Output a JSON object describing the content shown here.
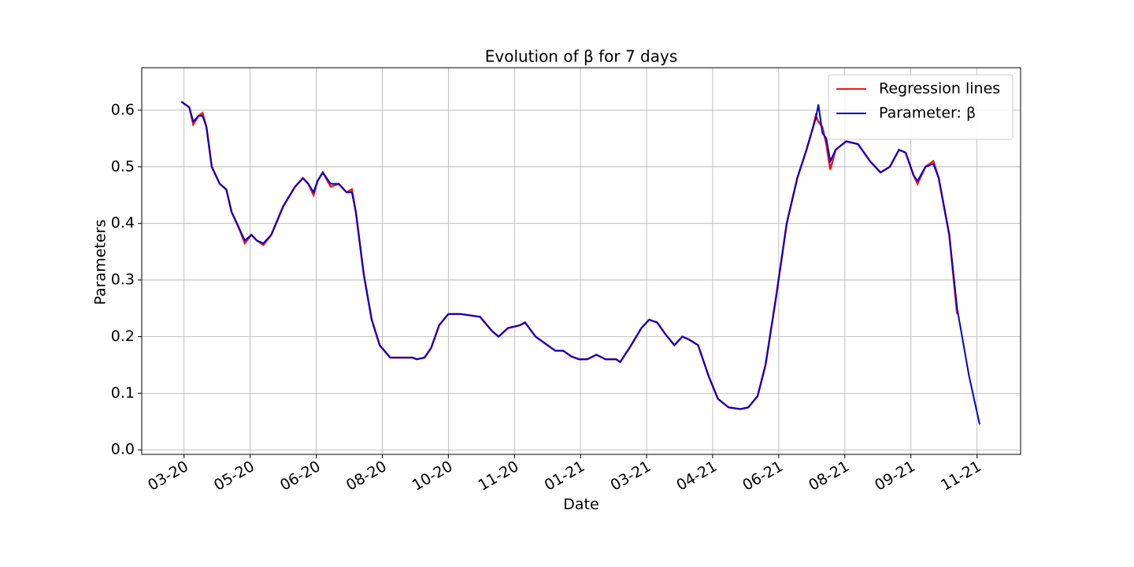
{
  "chart_data": {
    "type": "line",
    "title": "Evolution of β for 7 days",
    "xlabel": "Date",
    "ylabel": "Parameters",
    "x": [
      -2,
      4,
      7,
      11,
      14,
      17,
      21,
      27,
      32,
      36,
      41,
      46,
      51,
      55,
      60,
      66,
      75,
      84,
      90,
      94,
      98,
      101,
      105,
      111,
      117,
      123,
      127,
      130,
      136,
      142,
      148,
      156,
      164,
      173,
      176,
      182,
      187,
      193,
      200,
      209,
      224,
      233,
      238,
      245,
      254,
      258,
      266,
      275,
      281,
      287,
      293,
      299,
      305,
      312,
      319,
      327,
      330,
      337,
      346,
      352,
      358,
      364,
      371,
      377,
      382,
      389,
      397,
      404,
      412,
      421,
      427,
      434,
      440,
      448,
      456,
      464,
      471,
      476,
      478,
      480,
      483,
      486,
      489,
      493,
      501,
      510,
      519,
      527,
      534,
      541,
      546,
      552,
      555,
      561,
      567,
      571,
      579,
      585,
      594,
      602
    ],
    "series": [
      {
        "name": "Regression lines",
        "color": "#e41a1c",
        "values": [
          0.615,
          0.605,
          0.575,
          0.59,
          0.595,
          0.57,
          0.5,
          0.47,
          0.46,
          0.42,
          0.395,
          0.365,
          0.38,
          0.37,
          0.362,
          0.38,
          0.43,
          0.465,
          0.48,
          0.47,
          0.45,
          0.475,
          0.49,
          0.465,
          0.47,
          0.455,
          0.46,
          0.42,
          0.31,
          0.23,
          0.185,
          0.163,
          0.163,
          0.163,
          0.16,
          0.163,
          0.18,
          0.22,
          0.24,
          0.24,
          0.235,
          0.21,
          0.2,
          0.215,
          0.22,
          0.225,
          0.2,
          0.185,
          0.175,
          0.175,
          0.165,
          0.16,
          0.16,
          0.168,
          0.16,
          0.16,
          0.155,
          0.18,
          0.215,
          0.23,
          0.225,
          0.205,
          0.185,
          0.2,
          0.195,
          0.185,
          0.13,
          0.09,
          0.075,
          0.072,
          0.075,
          0.095,
          0.15,
          0.27,
          0.4,
          0.48,
          0.53,
          0.57,
          0.59,
          0.58,
          0.57,
          0.54,
          0.495,
          0.53,
          0.545,
          0.54,
          0.51,
          0.49,
          0.5,
          0.53,
          0.525,
          0.485,
          0.47,
          0.5,
          0.51,
          0.48,
          0.38,
          0.24,
          null,
          null
        ]
      },
      {
        "name": "Parameter: β",
        "color": "#0000cc",
        "values": [
          0.615,
          0.605,
          0.58,
          0.59,
          0.59,
          0.57,
          0.5,
          0.47,
          0.46,
          0.42,
          0.395,
          0.37,
          0.38,
          0.37,
          0.365,
          0.38,
          0.43,
          0.465,
          0.48,
          0.47,
          0.455,
          0.475,
          0.49,
          0.47,
          0.47,
          0.455,
          0.455,
          0.42,
          0.31,
          0.23,
          0.185,
          0.163,
          0.163,
          0.163,
          0.16,
          0.163,
          0.18,
          0.22,
          0.24,
          0.24,
          0.235,
          0.21,
          0.2,
          0.215,
          0.22,
          0.225,
          0.2,
          0.185,
          0.175,
          0.175,
          0.165,
          0.16,
          0.16,
          0.168,
          0.16,
          0.16,
          0.155,
          0.18,
          0.215,
          0.23,
          0.225,
          0.205,
          0.185,
          0.2,
          0.195,
          0.185,
          0.13,
          0.09,
          0.075,
          0.072,
          0.075,
          0.095,
          0.15,
          0.27,
          0.4,
          0.48,
          0.53,
          0.57,
          0.585,
          0.61,
          0.56,
          0.55,
          0.51,
          0.53,
          0.545,
          0.54,
          0.51,
          0.49,
          0.5,
          0.53,
          0.525,
          0.485,
          0.475,
          0.5,
          0.505,
          0.48,
          0.38,
          0.25,
          0.13,
          0.045
        ]
      }
    ],
    "xlim": [
      -32,
      633
    ],
    "xticks": [
      {
        "value": 0,
        "label": "03-20"
      },
      {
        "value": 50,
        "label": "05-20"
      },
      {
        "value": 100,
        "label": "06-20"
      },
      {
        "value": 150,
        "label": "08-20"
      },
      {
        "value": 200,
        "label": "10-20"
      },
      {
        "value": 250,
        "label": "11-20"
      },
      {
        "value": 300,
        "label": "01-21"
      },
      {
        "value": 350,
        "label": "03-21"
      },
      {
        "value": 400,
        "label": "04-21"
      },
      {
        "value": 450,
        "label": "06-21"
      },
      {
        "value": 500,
        "label": "08-21"
      },
      {
        "value": 550,
        "label": "09-21"
      },
      {
        "value": 600,
        "label": "11-21"
      }
    ],
    "ylim": [
      -0.008,
      0.675
    ],
    "yticks": [
      {
        "value": 0,
        "label": "0.0"
      },
      0.1,
      0.2,
      0.3,
      0.4,
      0.5,
      0.6
    ],
    "grid": true,
    "legend": "upper right"
  }
}
